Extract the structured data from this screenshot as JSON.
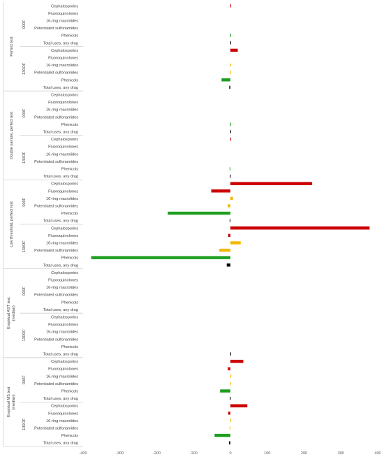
{
  "chart_data": {
    "type": "bar",
    "orientation": "horizontal",
    "xlim": [
      -400,
      400
    ],
    "xticks": [
      "-400",
      "-300",
      "-200",
      "-100",
      "0",
      "100",
      "200",
      "300",
      "400"
    ],
    "grid": false,
    "legend": "none",
    "drug_colors": {
      "Cephalosporins": "#cc0000",
      "Fluoroquinolones": "#cc0000",
      "16-ring macrolides": "#f5b800",
      "Potentiated sulfonamides": "#f5b800",
      "Phenicols": "#1f9e1f",
      "Total uses, any drug": "#000000"
    },
    "drugs": [
      "Cephalosporins",
      "Fluoroquinolones",
      "16-ring macrolides",
      "Potentiated sulfonamides",
      "Phenicols",
      "Total uses, any drug"
    ],
    "scenarios": [
      {
        "name": "Perfect test",
        "subgroups": [
          {
            "name": "000F",
            "values": [
              1,
              0,
              0,
              0,
              0.5,
              0.5
            ]
          },
          {
            "name": "130OF",
            "values": [
              20,
              0,
              1,
              0.5,
              -24,
              -3
            ]
          }
        ]
      },
      {
        "name": "Double sample, perfect test",
        "subgroups": [
          {
            "name": "000F",
            "values": [
              0,
              0,
              0,
              0,
              1,
              1
            ]
          },
          {
            "name": "130OF",
            "values": [
              1,
              0,
              0,
              0,
              -2,
              -1
            ]
          }
        ]
      },
      {
        "name": "Low threshold, perfect test",
        "subgroups": [
          {
            "name": "000F",
            "values": [
              222,
              -52,
              7,
              -7,
              -170,
              -2
            ]
          },
          {
            "name": "130OF",
            "values": [
              378,
              -6,
              28,
              -30,
              -378,
              -10
            ]
          }
        ]
      },
      {
        "name": "Empirical AST test (median)",
        "subgroups": [
          {
            "name": "000F",
            "values": [
              0,
              0,
              0,
              0,
              0,
              0
            ]
          },
          {
            "name": "130OF",
            "values": [
              0,
              0,
              0,
              0,
              0,
              0.5
            ]
          }
        ]
      },
      {
        "name": "Empirical MS test (median)",
        "subgroups": [
          {
            "name": "000F",
            "values": [
              35,
              -7,
              2,
              1,
              -28,
              -1
            ]
          },
          {
            "name": "130OF",
            "values": [
              46,
              -6,
              2,
              -2,
              -43,
              -4
            ]
          }
        ]
      }
    ]
  }
}
